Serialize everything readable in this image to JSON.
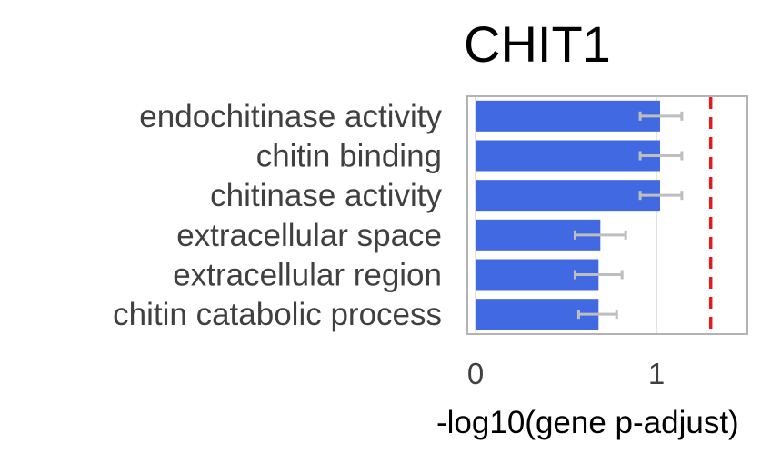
{
  "chart_data": {
    "type": "bar",
    "orientation": "horizontal",
    "title": "CHIT1",
    "xlabel": "-log10(gene p-adjust)",
    "ylabel": "",
    "categories": [
      "endochitinase activity",
      "chitin binding",
      "chitinase activity",
      "extracellular space",
      "extracellular region",
      "chitin catabolic process"
    ],
    "values": [
      1.02,
      1.02,
      1.02,
      0.69,
      0.68,
      0.68
    ],
    "error_low": [
      0.91,
      0.91,
      0.91,
      0.55,
      0.55,
      0.57
    ],
    "error_high": [
      1.14,
      1.14,
      1.14,
      0.83,
      0.81,
      0.78
    ],
    "threshold": 1.3,
    "xlim": [
      0,
      1.5
    ],
    "xticks": [
      0,
      1
    ],
    "xtick_labels": [
      "0",
      "1"
    ],
    "grid": true,
    "colors": {
      "bar": "#4169E1",
      "error_bar": "#BEBEBE",
      "threshold_line": "#E41A1C",
      "frame": "#B3B3B3",
      "grid": "#D9D9D9"
    }
  }
}
